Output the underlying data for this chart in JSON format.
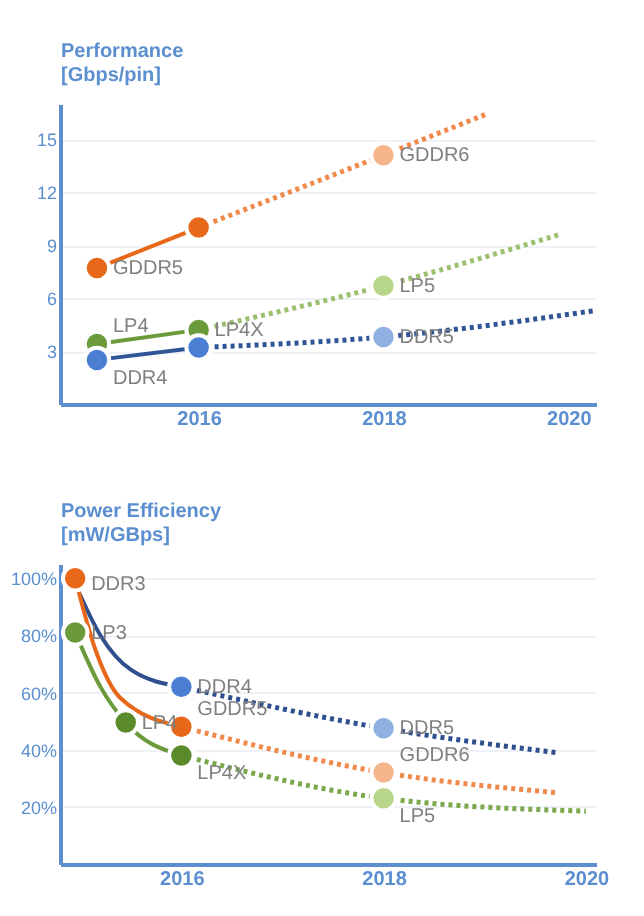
{
  "chart_data": [
    {
      "type": "line",
      "ylabel": "Performance\n[Gbps/pin]",
      "xlim": [
        2014.5,
        2020.3
      ],
      "xticks": [
        2016,
        2018,
        2020
      ],
      "ylim": [
        0,
        17
      ],
      "yticks": [
        3,
        6,
        9,
        12,
        15
      ],
      "grid": "y",
      "series": [
        {
          "line_style": "solid",
          "color": "#e8681a",
          "x": [
            2014.9,
            2016
          ],
          "values": [
            7.7,
            10.0
          ]
        },
        {
          "line_style": "dotted",
          "color": "#f08a4a",
          "x": [
            2016,
            2018,
            2019.1
          ],
          "values": [
            10.0,
            14.1,
            16.4
          ]
        },
        {
          "line_style": "solid",
          "color": "#6a9a3a",
          "x": [
            2014.9,
            2016
          ],
          "values": [
            3.4,
            4.2
          ]
        },
        {
          "line_style": "dotted",
          "color": "#9cc070",
          "x": [
            2016,
            2018,
            2019.9
          ],
          "values": [
            4.2,
            6.7,
            9.6
          ]
        },
        {
          "line_style": "solid",
          "color": "#2f5597",
          "x": [
            2014.9,
            2016
          ],
          "values": [
            2.5,
            3.2
          ]
        },
        {
          "line_style": "dotted",
          "color": "#2f5597",
          "x": [
            2016,
            2018,
            2020.3
          ],
          "values": [
            3.2,
            3.8,
            5.3
          ]
        },
        {
          "type": "scatter",
          "marker": "circle",
          "x": [
            2014.9,
            2016,
            2018
          ],
          "values": [
            7.7,
            10.0,
            14.1
          ],
          "colors": [
            "#e8681a",
            "#e8681a",
            "#f5b48a"
          ]
        },
        {
          "type": "scatter",
          "marker": "circle",
          "x": [
            2014.9,
            2016,
            2018
          ],
          "values": [
            3.4,
            4.2,
            6.7
          ],
          "colors": [
            "#6a9a3a",
            "#6a9a3a",
            "#b8d68a"
          ]
        },
        {
          "type": "scatter",
          "marker": "circle",
          "x": [
            2014.9,
            2016,
            2018
          ],
          "values": [
            2.5,
            3.2,
            3.8
          ],
          "colors": [
            "#4a7fd4",
            "#4a7fd4",
            "#8fb0e0"
          ]
        }
      ],
      "annotations": [
        {
          "text": "GDDR5",
          "x": 2014.9,
          "y": 7.7
        },
        {
          "text": "GDDR6",
          "x": 2018,
          "y": 14.1
        },
        {
          "text": "LP4",
          "x": 2014.9,
          "y": 3.4
        },
        {
          "text": "LP4X",
          "x": 2016,
          "y": 4.2
        },
        {
          "text": "LP5",
          "x": 2018,
          "y": 6.7
        },
        {
          "text": "DDR4",
          "x": 2014.9,
          "y": 2.5
        },
        {
          "text": "DDR5",
          "x": 2018,
          "y": 3.8
        }
      ]
    },
    {
      "type": "line",
      "ylabel": "Power Efficiency\n[mW/GBps]",
      "xlim": [
        2014.8,
        2020.1
      ],
      "xticks": [
        2016,
        2018,
        2020
      ],
      "ylim": [
        0,
        105
      ],
      "yticks": [
        {
          "value": 20,
          "label": "20%"
        },
        {
          "value": 40,
          "label": "40%"
        },
        {
          "value": 60,
          "label": "60%"
        },
        {
          "value": 80,
          "label": "80%"
        },
        {
          "value": 100,
          "label": "100%"
        }
      ],
      "grid": "y",
      "series": [
        {
          "line_style": "solid",
          "color": "#2f4f8f",
          "x": [
            2014.95,
            2015.2,
            2015.5,
            2016
          ],
          "values": [
            98,
            80,
            68,
            62
          ]
        },
        {
          "line_style": "dotted",
          "color": "#2f4f8f",
          "x": [
            2016,
            2018,
            2019.7
          ],
          "values": [
            62,
            47.5,
            39
          ]
        },
        {
          "line_style": "solid",
          "color": "#e8681a",
          "x": [
            2014.95,
            2015.15,
            2015.4,
            2016
          ],
          "values": [
            100,
            75,
            58,
            48
          ]
        },
        {
          "line_style": "dotted",
          "color": "#f08a4a",
          "x": [
            2016,
            2018,
            2019.7
          ],
          "values": [
            48,
            32,
            25
          ]
        },
        {
          "line_style": "solid",
          "color": "#6a9a3a",
          "x": [
            2014.95,
            2015.2,
            2015.45,
            2016
          ],
          "values": [
            81,
            62,
            49.5,
            38
          ]
        },
        {
          "line_style": "dotted",
          "color": "#7aa84a",
          "x": [
            2016,
            2018,
            2020
          ],
          "values": [
            38,
            23,
            18.5
          ]
        },
        {
          "type": "scatter",
          "marker": "circle",
          "x": [
            2014.95,
            2016,
            2018
          ],
          "values": [
            100,
            62,
            47.5
          ],
          "colors": [
            "#e8681a",
            "#4a7fd4",
            "#8fb0e0"
          ]
        },
        {
          "type": "scatter",
          "marker": "circle",
          "x": [
            2016,
            2018
          ],
          "values": [
            48,
            32
          ],
          "colors": [
            "#e8681a",
            "#f5b48a"
          ]
        },
        {
          "type": "scatter",
          "marker": "circle",
          "x": [
            2014.95,
            2015.45,
            2016,
            2018
          ],
          "values": [
            81,
            49.5,
            38,
            23
          ],
          "colors": [
            "#6a9a3a",
            "#5a8a2a",
            "#5a8a2a",
            "#b8d68a"
          ]
        }
      ],
      "annotations": [
        {
          "text": "DDR3",
          "x": 2014.95,
          "y": 98
        },
        {
          "text": "LP3",
          "x": 2014.95,
          "y": 81
        },
        {
          "text": "DDR4",
          "x": 2016,
          "y": 62
        },
        {
          "text": "GDDR5",
          "x": 2016,
          "y": 48
        },
        {
          "text": "LP4",
          "x": 2015.45,
          "y": 49.5
        },
        {
          "text": "LP4X",
          "x": 2016,
          "y": 38
        },
        {
          "text": "DDR5",
          "x": 2018,
          "y": 47.5
        },
        {
          "text": "GDDR6",
          "x": 2018,
          "y": 32
        },
        {
          "text": "LP5",
          "x": 2018,
          "y": 23
        }
      ]
    }
  ]
}
